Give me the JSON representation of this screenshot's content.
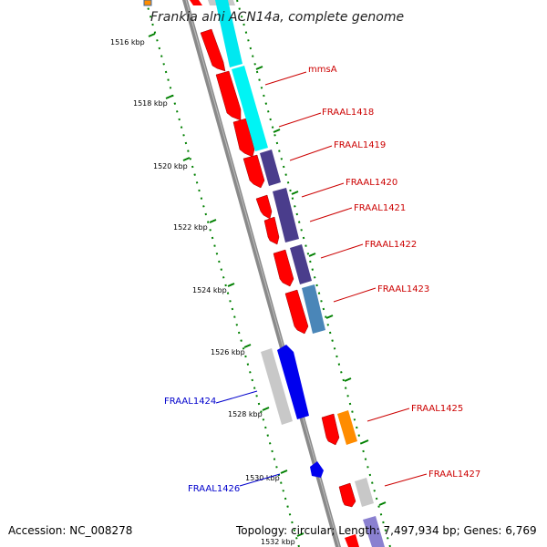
{
  "title": "Frankia alni ACN14a, complete genome",
  "footer": {
    "accession": "Accession: NC_008278",
    "topology": "Topology: circular; Length: 7,497,934 bp; Genes: 6,769"
  },
  "colors": {
    "forward": "#ff0000",
    "reverse_blue": "#0000ee",
    "cyan": "#00f0f0",
    "purple": "#4a3d8c",
    "steel": "#4a86b8",
    "orange": "#ff8c00",
    "gray": "#c8c8c8",
    "tick_green": "#008000",
    "label_red": "#cc0000",
    "label_blue": "#0000cc"
  },
  "ticks": [
    "1516 kbp",
    "1518 kbp",
    "1520 kbp",
    "1522 kbp",
    "1524 kbp",
    "1526 kbp",
    "1528 kbp",
    "1530 kbp",
    "1532 kbp"
  ],
  "labels_right": [
    "mmsA",
    "FRAAL1418",
    "FRAAL1419",
    "FRAAL1420",
    "FRAAL1421",
    "FRAAL1422",
    "FRAAL1423",
    "FRAAL1425",
    "FRAAL1427"
  ],
  "labels_left": [
    "FRAAL1424",
    "FRAAL1426"
  ]
}
